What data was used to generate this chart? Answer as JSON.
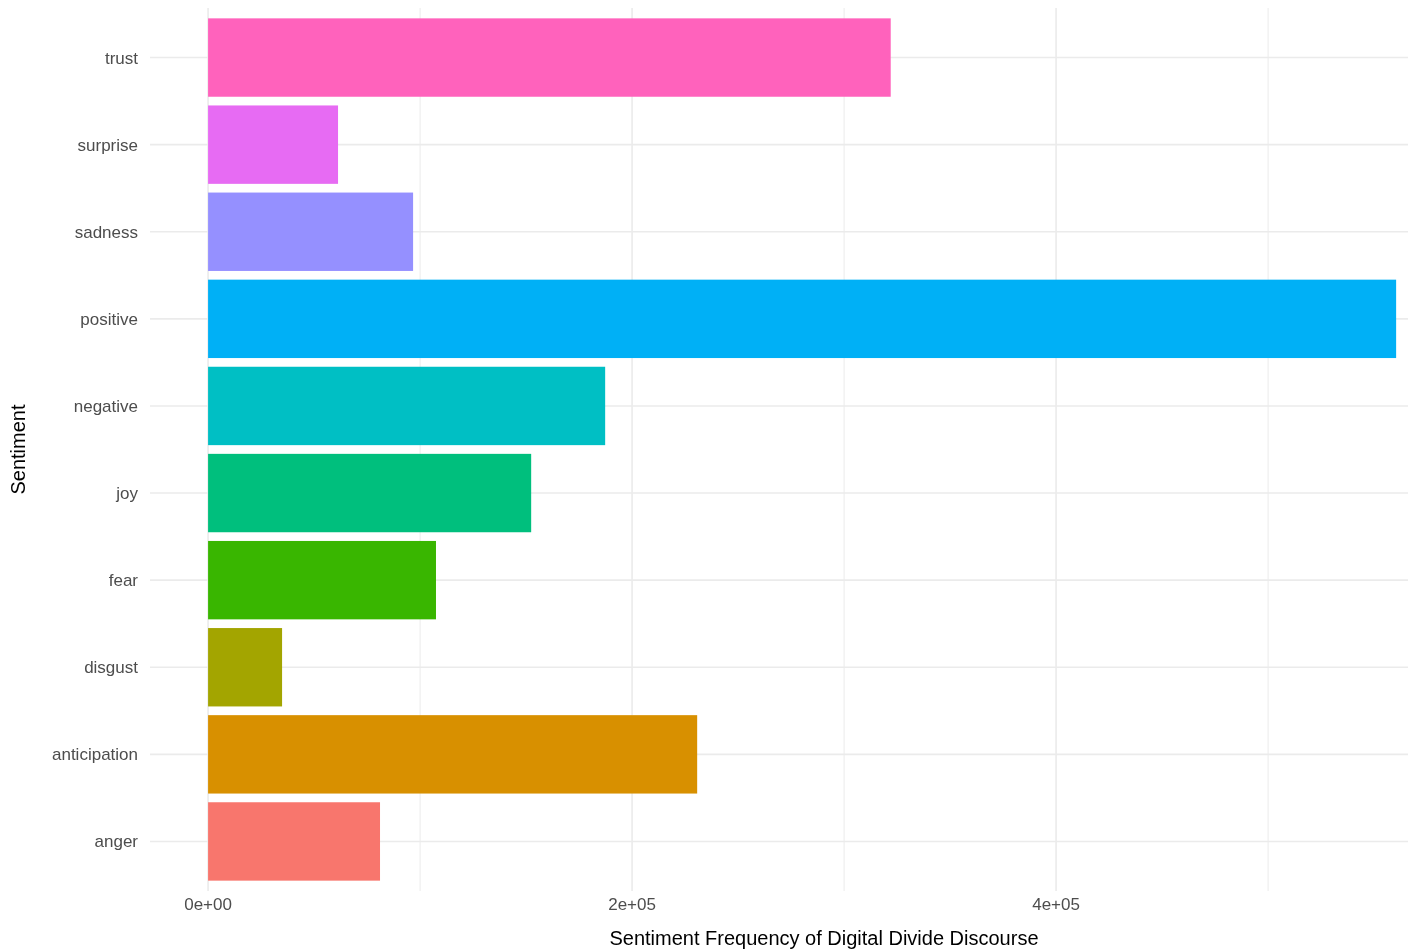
{
  "chart_data": {
    "type": "bar",
    "orientation": "horizontal",
    "xlabel": "Sentiment Frequency of Digital Divide Discourse",
    "ylabel": "Sentiment",
    "categories": [
      "trust",
      "surprise",
      "sadness",
      "positive",
      "negative",
      "joy",
      "fear",
      "disgust",
      "anticipation",
      "anger"
    ],
    "values": [
      322000,
      61300,
      96700,
      560400,
      187300,
      152400,
      107500,
      34900,
      230700,
      81100
    ],
    "colors": [
      "#ff62bc",
      "#e76bf3",
      "#9590ff",
      "#00b0f6",
      "#00bfc4",
      "#00bf7d",
      "#39b600",
      "#a3a500",
      "#d89000",
      "#f8766d"
    ],
    "xlim": [
      -27400,
      566000
    ],
    "xticks": [
      {
        "value": 0,
        "label": "0e+00"
      },
      {
        "value": 100000,
        "label": null
      },
      {
        "value": 200000,
        "label": "2e+05"
      },
      {
        "value": 300000,
        "label": null
      },
      {
        "value": 400000,
        "label": "4e+05"
      },
      {
        "value": 500000,
        "label": null
      }
    ],
    "grid": true
  }
}
